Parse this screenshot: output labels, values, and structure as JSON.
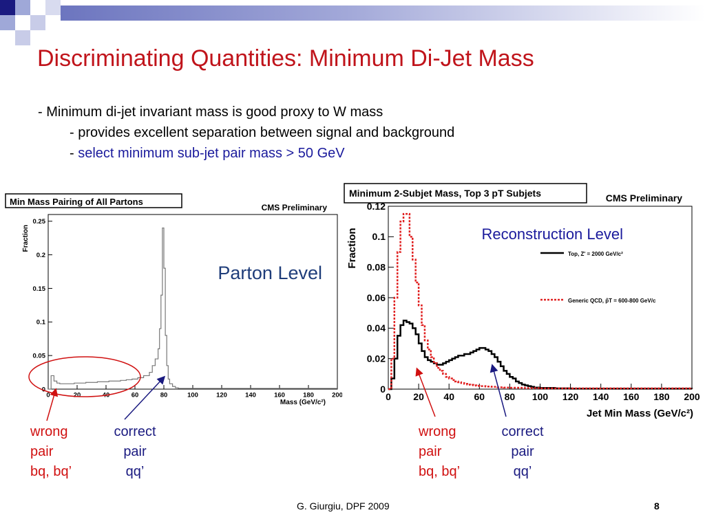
{
  "slide": {
    "title": "Discriminating Quantities: Minimum Di-Jet Mass",
    "bullets": {
      "b1": "- Minimum di-jet invariant mass is good proxy to W mass",
      "b2": "- provides excellent separation between signal and background",
      "b3_dash": "- ",
      "b3_text": "select minimum sub-jet pair mass > 50 GeV"
    },
    "footer": {
      "author": "G. Giurgiu, DPF 2009",
      "page": "8"
    },
    "annotations": {
      "left_wrong": [
        "wrong",
        "pair",
        "bq, bq’"
      ],
      "left_correct": [
        "correct",
        "pair",
        "qq’"
      ],
      "right_wrong": [
        "wrong",
        "pair",
        "bq, bq’"
      ],
      "right_correct": [
        "correct",
        "pair",
        "qq’"
      ]
    }
  },
  "chart_data": [
    {
      "type": "line",
      "title": "Min Mass Pairing of All Partons",
      "corner_label": "CMS Preliminary",
      "overlay_text": "Parton Level",
      "xlabel": "Mass (GeV/c²)",
      "ylabel": "Fraction",
      "xlim": [
        0,
        200
      ],
      "ylim": [
        0,
        0.26
      ],
      "x_ticks": [
        "0",
        "20",
        "40",
        "60",
        "80",
        "100",
        "120",
        "140",
        "160",
        "180",
        "200"
      ],
      "y_ticks": [
        "0",
        "0.05",
        "0.1",
        "0.15",
        "0.2",
        "0.25"
      ],
      "series": [
        {
          "color": "#777777",
          "x": [
            0,
            2,
            4,
            6,
            8,
            10,
            14,
            18,
            22,
            26,
            30,
            34,
            38,
            42,
            46,
            50,
            54,
            58,
            62,
            66,
            70,
            72,
            74,
            76,
            77,
            78,
            79,
            80,
            81,
            82,
            83,
            84,
            86,
            88,
            90,
            100,
            200
          ],
          "y": [
            0,
            0.02,
            0.012,
            0.009,
            0.008,
            0.008,
            0.008,
            0.009,
            0.009,
            0.01,
            0.01,
            0.011,
            0.011,
            0.012,
            0.012,
            0.013,
            0.014,
            0.015,
            0.017,
            0.02,
            0.025,
            0.035,
            0.045,
            0.06,
            0.09,
            0.14,
            0.24,
            0.18,
            0.08,
            0.035,
            0.015,
            0.008,
            0.004,
            0.002,
            0.001,
            0.001,
            0.001
          ]
        }
      ]
    },
    {
      "type": "line",
      "title": "Minimum 2-Subjet Mass, Top 3 pT Subjets",
      "corner_label": "CMS Preliminary",
      "overlay_text": "Reconstruction Level",
      "xlabel": "Jet Min Mass (GeV/c²)",
      "ylabel": "Fraction",
      "xlim": [
        0,
        200
      ],
      "ylim": [
        0,
        0.12
      ],
      "x_ticks": [
        "0",
        "20",
        "40",
        "60",
        "80",
        "100",
        "120",
        "140",
        "160",
        "180",
        "200"
      ],
      "y_ticks": [
        "0",
        "0.02",
        "0.04",
        "0.06",
        "0.08",
        "0.1",
        "0.12"
      ],
      "series": [
        {
          "name": "Top, Z' = 2000 GeV/c²",
          "color": "#000000",
          "dashed": false,
          "x": [
            0,
            2,
            4,
            6,
            8,
            10,
            12,
            14,
            16,
            18,
            20,
            22,
            24,
            26,
            28,
            30,
            32,
            34,
            36,
            38,
            40,
            42,
            44,
            46,
            48,
            50,
            52,
            54,
            56,
            58,
            60,
            62,
            64,
            66,
            68,
            70,
            72,
            74,
            76,
            78,
            80,
            82,
            84,
            86,
            88,
            90,
            92,
            94,
            96,
            98,
            100,
            110,
            120,
            200
          ],
          "y": [
            0,
            0.007,
            0.02,
            0.035,
            0.042,
            0.045,
            0.044,
            0.043,
            0.04,
            0.036,
            0.03,
            0.025,
            0.021,
            0.019,
            0.018,
            0.017,
            0.016,
            0.016,
            0.017,
            0.018,
            0.019,
            0.02,
            0.021,
            0.022,
            0.022,
            0.023,
            0.023,
            0.024,
            0.025,
            0.026,
            0.027,
            0.027,
            0.026,
            0.025,
            0.023,
            0.021,
            0.018,
            0.015,
            0.012,
            0.01,
            0.008,
            0.007,
            0.005,
            0.004,
            0.003,
            0.0025,
            0.002,
            0.0015,
            0.001,
            0.001,
            0.0008,
            0.0005,
            0.0003,
            0.0002
          ]
        },
        {
          "name": "Generic QCD, p̂T = 600-800 GeV/c",
          "color": "#e02020",
          "dashed": true,
          "x": [
            0,
            2,
            4,
            6,
            8,
            10,
            12,
            14,
            16,
            18,
            20,
            22,
            24,
            26,
            28,
            30,
            32,
            34,
            36,
            38,
            40,
            42,
            44,
            46,
            48,
            50,
            52,
            54,
            56,
            58,
            60,
            64,
            68,
            72,
            76,
            80,
            90,
            100,
            200
          ],
          "y": [
            0,
            0.02,
            0.06,
            0.09,
            0.11,
            0.115,
            0.115,
            0.1,
            0.085,
            0.07,
            0.055,
            0.042,
            0.032,
            0.026,
            0.021,
            0.017,
            0.014,
            0.012,
            0.01,
            0.008,
            0.007,
            0.006,
            0.005,
            0.0045,
            0.004,
            0.0035,
            0.003,
            0.0028,
            0.0025,
            0.0022,
            0.002,
            0.0017,
            0.0015,
            0.0012,
            0.001,
            0.0009,
            0.0007,
            0.0005,
            0.0002
          ]
        }
      ]
    }
  ]
}
